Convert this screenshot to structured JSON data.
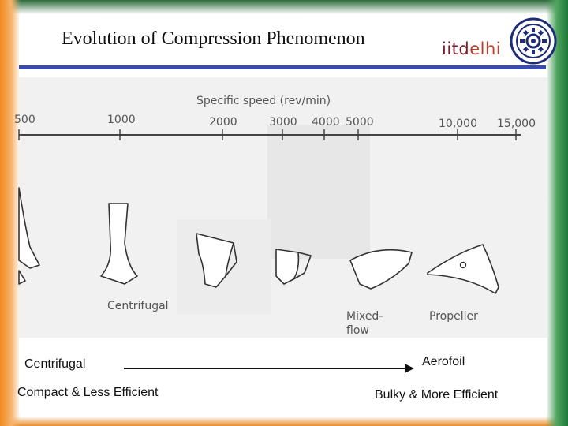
{
  "slide": {
    "title": "Evolution of Compression Phenomenon",
    "logo": {
      "text_main": "iitd",
      "text_accent": "elhi"
    }
  },
  "figure": {
    "axis_title": "Specific speed  (rev/min)",
    "ticks": [
      "500",
      "1000",
      "2000",
      "3000",
      "4000",
      "5000",
      "10,000",
      "15,000"
    ],
    "stage_labels": {
      "centrifugal": "Centrifugal",
      "mixed_line1": "Mixed-",
      "mixed_line2": "flow",
      "propeller": "Propeller"
    }
  },
  "bottom": {
    "left_top": "Centrifugal",
    "right_top": "Aerofoil",
    "left_bottom": "Compact & Less Efficient",
    "right_bottom": "Bulky & More Efficient"
  },
  "colors": {
    "accent_bar": "#3a4bb0",
    "logo": "#7a1d2b",
    "border_saffron": "#f28a1f",
    "border_green": "#1f7a3a"
  }
}
